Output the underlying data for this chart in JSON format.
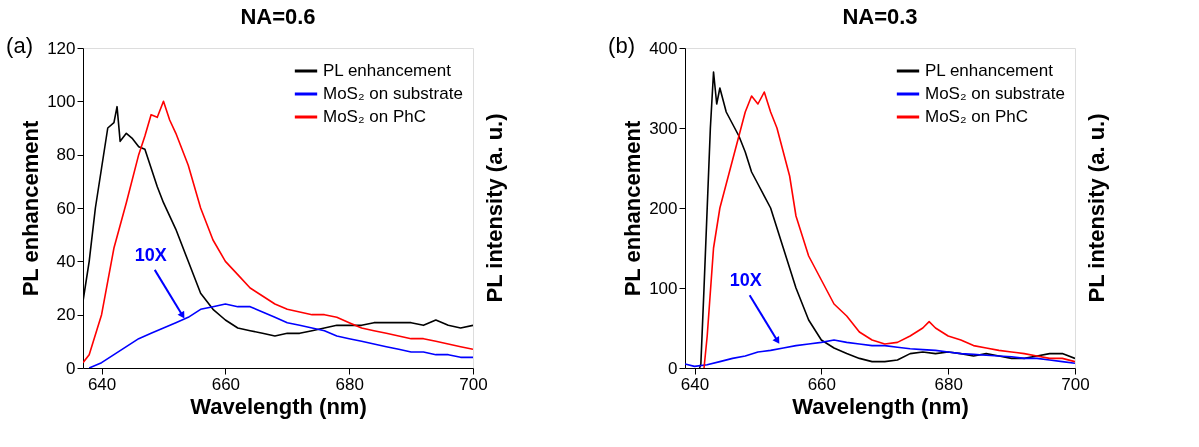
{
  "chart_data": [
    {
      "type": "line",
      "title": "NA=0.6",
      "xlabel": "Wavelength (nm)",
      "ylabel": "PL enhancement",
      "y2label": "PL intensity (a. u.)",
      "xlim": [
        637,
        700
      ],
      "xticks": [
        640,
        660,
        680,
        700
      ],
      "ylim": [
        0,
        120
      ],
      "yticks": [
        0,
        20,
        40,
        60,
        80,
        100,
        120
      ],
      "grid": false,
      "legend": "top right",
      "marker": "none",
      "line_style": "solid",
      "annotations": [
        "(a)",
        {
          "text": "10X",
          "x": 653,
          "y": 20
        }
      ],
      "series": [
        {
          "name": "PL enhancement",
          "color": "#000000",
          "x": [
            637,
            638,
            639,
            640,
            641,
            642,
            642.5,
            643,
            644,
            645,
            646,
            647,
            648,
            649,
            650,
            652,
            654,
            656,
            658,
            660,
            662,
            664,
            666,
            668,
            670,
            672,
            674,
            676,
            678,
            680,
            682,
            684,
            686,
            688,
            690,
            692,
            694,
            696,
            698,
            700
          ],
          "values": [
            25,
            40,
            60,
            75,
            90,
            92,
            98,
            85,
            88,
            86,
            83,
            82,
            75,
            68,
            62,
            52,
            40,
            28,
            22,
            18,
            15,
            14,
            13,
            12,
            13,
            13,
            14,
            15,
            16,
            16,
            16,
            17,
            17,
            17,
            17,
            16,
            18,
            16,
            15,
            16
          ]
        },
        {
          "name": "MoS₂ on substrate",
          "color": "#0000ff",
          "x": [
            638,
            640,
            642,
            644,
            646,
            648,
            650,
            652,
            654,
            656,
            658,
            660,
            662,
            664,
            666,
            668,
            670,
            672,
            674,
            676,
            678,
            680,
            682,
            684,
            686,
            688,
            690,
            692,
            694,
            696,
            698,
            700
          ],
          "values": [
            0,
            2,
            5,
            8,
            11,
            13,
            15,
            17,
            19,
            22,
            23,
            24,
            23,
            23,
            21,
            19,
            17,
            16,
            15,
            14,
            12,
            11,
            10,
            9,
            8,
            7,
            6,
            6,
            5,
            5,
            4,
            4
          ]
        },
        {
          "name": "MoS₂ on PhC",
          "color": "#ff0000",
          "x": [
            637,
            638,
            640,
            642,
            644,
            646,
            647,
            648,
            649,
            650,
            651,
            652,
            654,
            656,
            658,
            660,
            662,
            664,
            666,
            668,
            670,
            672,
            674,
            676,
            678,
            680,
            682,
            684,
            686,
            688,
            690,
            692,
            694,
            696,
            698,
            700
          ],
          "values": [
            2,
            5,
            20,
            45,
            62,
            80,
            87,
            95,
            94,
            100,
            93,
            88,
            76,
            60,
            48,
            40,
            35,
            30,
            27,
            24,
            22,
            21,
            20,
            20,
            19,
            17,
            15,
            14,
            13,
            12,
            11,
            11,
            10,
            9,
            8,
            7
          ]
        }
      ]
    },
    {
      "type": "line",
      "title": "NA=0.3",
      "xlabel": "Wavelength (nm)",
      "ylabel": "PL enhancement",
      "y2label": "PL intensity (a. u.)",
      "xlim": [
        638.5,
        700
      ],
      "xticks": [
        640,
        660,
        680,
        700
      ],
      "ylim": [
        0,
        400
      ],
      "yticks": [
        0,
        100,
        200,
        300,
        400
      ],
      "grid": false,
      "legend": "top right",
      "marker": "none",
      "line_style": "solid",
      "annotations": [
        "(b)",
        {
          "text": "10X",
          "x": 653,
          "y": 35
        }
      ],
      "series": [
        {
          "name": "PL enhancement",
          "color": "#000000",
          "x": [
            640.8,
            641,
            641.5,
            642,
            642.5,
            643,
            643.5,
            644,
            645,
            646,
            647,
            648,
            649,
            650,
            652,
            654,
            656,
            658,
            660,
            662,
            664,
            666,
            668,
            670,
            672,
            674,
            676,
            678,
            680,
            682,
            684,
            686,
            688,
            690,
            692,
            694,
            696,
            698,
            700
          ],
          "values": [
            0,
            5,
            100,
            200,
            300,
            370,
            330,
            350,
            320,
            305,
            290,
            270,
            245,
            230,
            200,
            150,
            100,
            60,
            35,
            25,
            18,
            12,
            8,
            8,
            10,
            18,
            20,
            18,
            20,
            18,
            15,
            18,
            15,
            12,
            12,
            15,
            18,
            18,
            12
          ]
        },
        {
          "name": "MoS₂ on substrate",
          "color": "#0000ff",
          "x": [
            638.5,
            640,
            642,
            644,
            646,
            648,
            650,
            652,
            654,
            656,
            658,
            660,
            662,
            664,
            666,
            668,
            670,
            672,
            674,
            676,
            678,
            680,
            682,
            684,
            686,
            688,
            690,
            692,
            694,
            696,
            698,
            700
          ],
          "values": [
            5,
            2,
            4,
            8,
            12,
            15,
            20,
            22,
            25,
            28,
            30,
            32,
            35,
            32,
            30,
            28,
            28,
            26,
            24,
            23,
            22,
            20,
            18,
            17,
            16,
            15,
            14,
            12,
            12,
            10,
            8,
            6
          ]
        },
        {
          "name": "MoS₂ on PhC",
          "color": "#ff0000",
          "x": [
            641.5,
            642,
            643,
            644,
            645,
            646,
            647,
            648,
            649,
            650,
            651,
            652,
            653,
            654,
            655,
            656,
            658,
            660,
            662,
            664,
            666,
            668,
            670,
            672,
            674,
            676,
            677,
            678,
            680,
            682,
            684,
            686,
            688,
            690,
            692,
            694,
            696,
            698,
            700
          ],
          "values": [
            0,
            40,
            150,
            200,
            230,
            260,
            290,
            320,
            340,
            330,
            345,
            320,
            300,
            270,
            240,
            190,
            140,
            110,
            80,
            65,
            45,
            35,
            30,
            32,
            40,
            50,
            58,
            50,
            40,
            35,
            28,
            25,
            22,
            20,
            18,
            15,
            12,
            12,
            8
          ]
        }
      ]
    }
  ]
}
